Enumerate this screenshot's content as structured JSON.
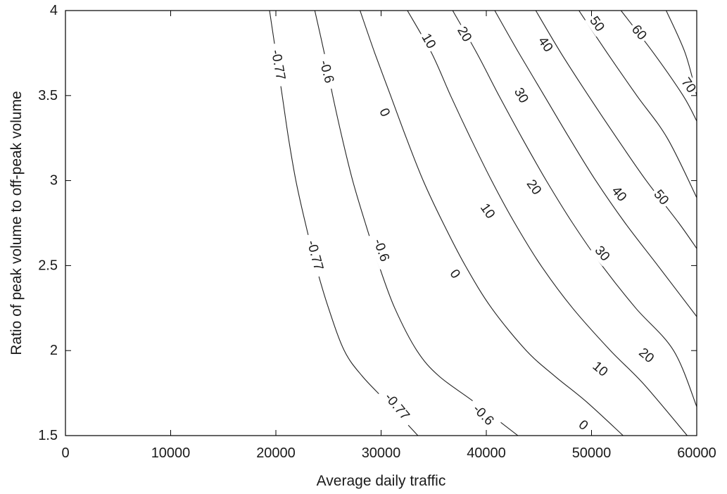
{
  "chart_data": {
    "type": "contour",
    "title": "",
    "xlabel": "Average daily traffic",
    "ylabel": "Ratio of peak volume to off-peak volume",
    "xlim": [
      0,
      60000
    ],
    "ylim": [
      1.5,
      4
    ],
    "xticks": [
      0,
      10000,
      20000,
      30000,
      40000,
      50000,
      60000
    ],
    "yticks": [
      1.5,
      2,
      2.5,
      3,
      3.5,
      4
    ],
    "xtick_labels": [
      "0",
      "10000",
      "20000",
      "30000",
      "40000",
      "50000",
      "60000"
    ],
    "ytick_labels": [
      "1.5",
      "2",
      "2.5",
      "3",
      "3.5",
      "4"
    ],
    "grid": false,
    "line_color": "#222222",
    "contours": [
      {
        "level": "-0.77",
        "points": [
          [
            19400,
            4.0
          ],
          [
            20000,
            3.75
          ],
          [
            20600,
            3.5
          ],
          [
            21200,
            3.25
          ],
          [
            21900,
            3.0
          ],
          [
            22800,
            2.75
          ],
          [
            23800,
            2.5
          ],
          [
            25000,
            2.25
          ],
          [
            26500,
            2.0
          ],
          [
            28200,
            1.85
          ],
          [
            30500,
            1.7
          ],
          [
            33500,
            1.5
          ]
        ],
        "labels": [
          {
            "text": "-0.77",
            "x": 20200,
            "y": 3.68,
            "angle": 80
          },
          {
            "text": "-0.77",
            "x": 23700,
            "y": 2.56,
            "angle": 75
          },
          {
            "text": "-0.77",
            "x": 31500,
            "y": 1.67,
            "angle": 50
          }
        ]
      },
      {
        "level": "-0.6",
        "points": [
          [
            23700,
            4.0
          ],
          [
            24600,
            3.75
          ],
          [
            25400,
            3.5
          ],
          [
            26300,
            3.25
          ],
          [
            27300,
            3.0
          ],
          [
            28500,
            2.75
          ],
          [
            29800,
            2.5
          ],
          [
            31300,
            2.25
          ],
          [
            33400,
            2.0
          ],
          [
            35500,
            1.85
          ],
          [
            38800,
            1.7
          ],
          [
            43000,
            1.5
          ]
        ],
        "labels": [
          {
            "text": "-0.6",
            "x": 24800,
            "y": 3.64,
            "angle": 75
          },
          {
            "text": "-0.6",
            "x": 30000,
            "y": 2.59,
            "angle": 70
          },
          {
            "text": "-0.6",
            "x": 39700,
            "y": 1.62,
            "angle": 45
          }
        ]
      },
      {
        "level": "0",
        "points": [
          [
            28000,
            4.0
          ],
          [
            29400,
            3.75
          ],
          [
            30900,
            3.5
          ],
          [
            32400,
            3.25
          ],
          [
            34000,
            3.0
          ],
          [
            35900,
            2.75
          ],
          [
            38000,
            2.5
          ],
          [
            40500,
            2.25
          ],
          [
            43800,
            2.0
          ],
          [
            46500,
            1.85
          ],
          [
            49500,
            1.7
          ],
          [
            53000,
            1.5
          ]
        ],
        "labels": [
          {
            "text": "0",
            "x": 30300,
            "y": 3.4,
            "angle": 65
          },
          {
            "text": "0",
            "x": 37000,
            "y": 2.45,
            "angle": 55
          },
          {
            "text": "0",
            "x": 49200,
            "y": 1.56,
            "angle": 40
          }
        ]
      },
      {
        "level": "10",
        "points": [
          [
            32500,
            4.0
          ],
          [
            34800,
            3.75
          ],
          [
            36600,
            3.5
          ],
          [
            38500,
            3.25
          ],
          [
            40500,
            3.0
          ],
          [
            42700,
            2.75
          ],
          [
            45200,
            2.5
          ],
          [
            48200,
            2.25
          ],
          [
            51800,
            2.0
          ],
          [
            55000,
            1.8
          ],
          [
            59100,
            1.5
          ]
        ],
        "labels": [
          {
            "text": "10",
            "x": 34500,
            "y": 3.82,
            "angle": 60
          },
          {
            "text": "10",
            "x": 40100,
            "y": 2.82,
            "angle": 55
          },
          {
            "text": "10",
            "x": 50800,
            "y": 1.89,
            "angle": 40
          }
        ]
      },
      {
        "level": "20",
        "points": [
          [
            36800,
            4.0
          ],
          [
            39100,
            3.75
          ],
          [
            41200,
            3.5
          ],
          [
            43400,
            3.25
          ],
          [
            45700,
            3.0
          ],
          [
            48200,
            2.75
          ],
          [
            51000,
            2.5
          ],
          [
            54200,
            2.25
          ],
          [
            57800,
            2.0
          ],
          [
            60000,
            1.67
          ]
        ],
        "labels": [
          {
            "text": "20",
            "x": 37900,
            "y": 3.86,
            "angle": 60
          },
          {
            "text": "20",
            "x": 44500,
            "y": 2.96,
            "angle": 55
          },
          {
            "text": "20",
            "x": 55200,
            "y": 1.97,
            "angle": 40
          }
        ]
      },
      {
        "level": "30",
        "points": [
          [
            40800,
            4.0
          ],
          [
            43100,
            3.75
          ],
          [
            45500,
            3.5
          ],
          [
            47900,
            3.25
          ],
          [
            50400,
            3.0
          ],
          [
            53200,
            2.75
          ],
          [
            56300,
            2.5
          ],
          [
            60000,
            2.2
          ]
        ],
        "labels": [
          {
            "text": "30",
            "x": 43300,
            "y": 3.5,
            "angle": 60
          },
          {
            "text": "30",
            "x": 51000,
            "y": 2.57,
            "angle": 50
          }
        ]
      },
      {
        "level": "40",
        "points": [
          [
            44700,
            4.0
          ],
          [
            47100,
            3.75
          ],
          [
            49700,
            3.5
          ],
          [
            52400,
            3.25
          ],
          [
            55200,
            3.0
          ],
          [
            58300,
            2.75
          ],
          [
            60000,
            2.6
          ]
        ],
        "labels": [
          {
            "text": "40",
            "x": 45600,
            "y": 3.8,
            "angle": 55
          },
          {
            "text": "40",
            "x": 52600,
            "y": 2.92,
            "angle": 50
          }
        ]
      },
      {
        "level": "50",
        "points": [
          [
            48800,
            4.0
          ],
          [
            51500,
            3.75
          ],
          [
            54300,
            3.5
          ],
          [
            57200,
            3.25
          ],
          [
            60000,
            2.9
          ]
        ],
        "labels": [
          {
            "text": "50",
            "x": 50500,
            "y": 3.92,
            "angle": 55
          },
          {
            "text": "50",
            "x": 56600,
            "y": 2.9,
            "angle": 50
          }
        ]
      },
      {
        "level": "60",
        "points": [
          [
            52800,
            4.0
          ],
          [
            55900,
            3.75
          ],
          [
            58700,
            3.5
          ],
          [
            60000,
            3.35
          ]
        ],
        "labels": [
          {
            "text": "60",
            "x": 54500,
            "y": 3.87,
            "angle": 50
          }
        ]
      },
      {
        "level": "70",
        "points": [
          [
            57100,
            4.0
          ],
          [
            58900,
            3.75
          ],
          [
            60000,
            3.5
          ]
        ],
        "labels": [
          {
            "text": "70",
            "x": 59200,
            "y": 3.56,
            "angle": 55
          }
        ]
      }
    ]
  }
}
